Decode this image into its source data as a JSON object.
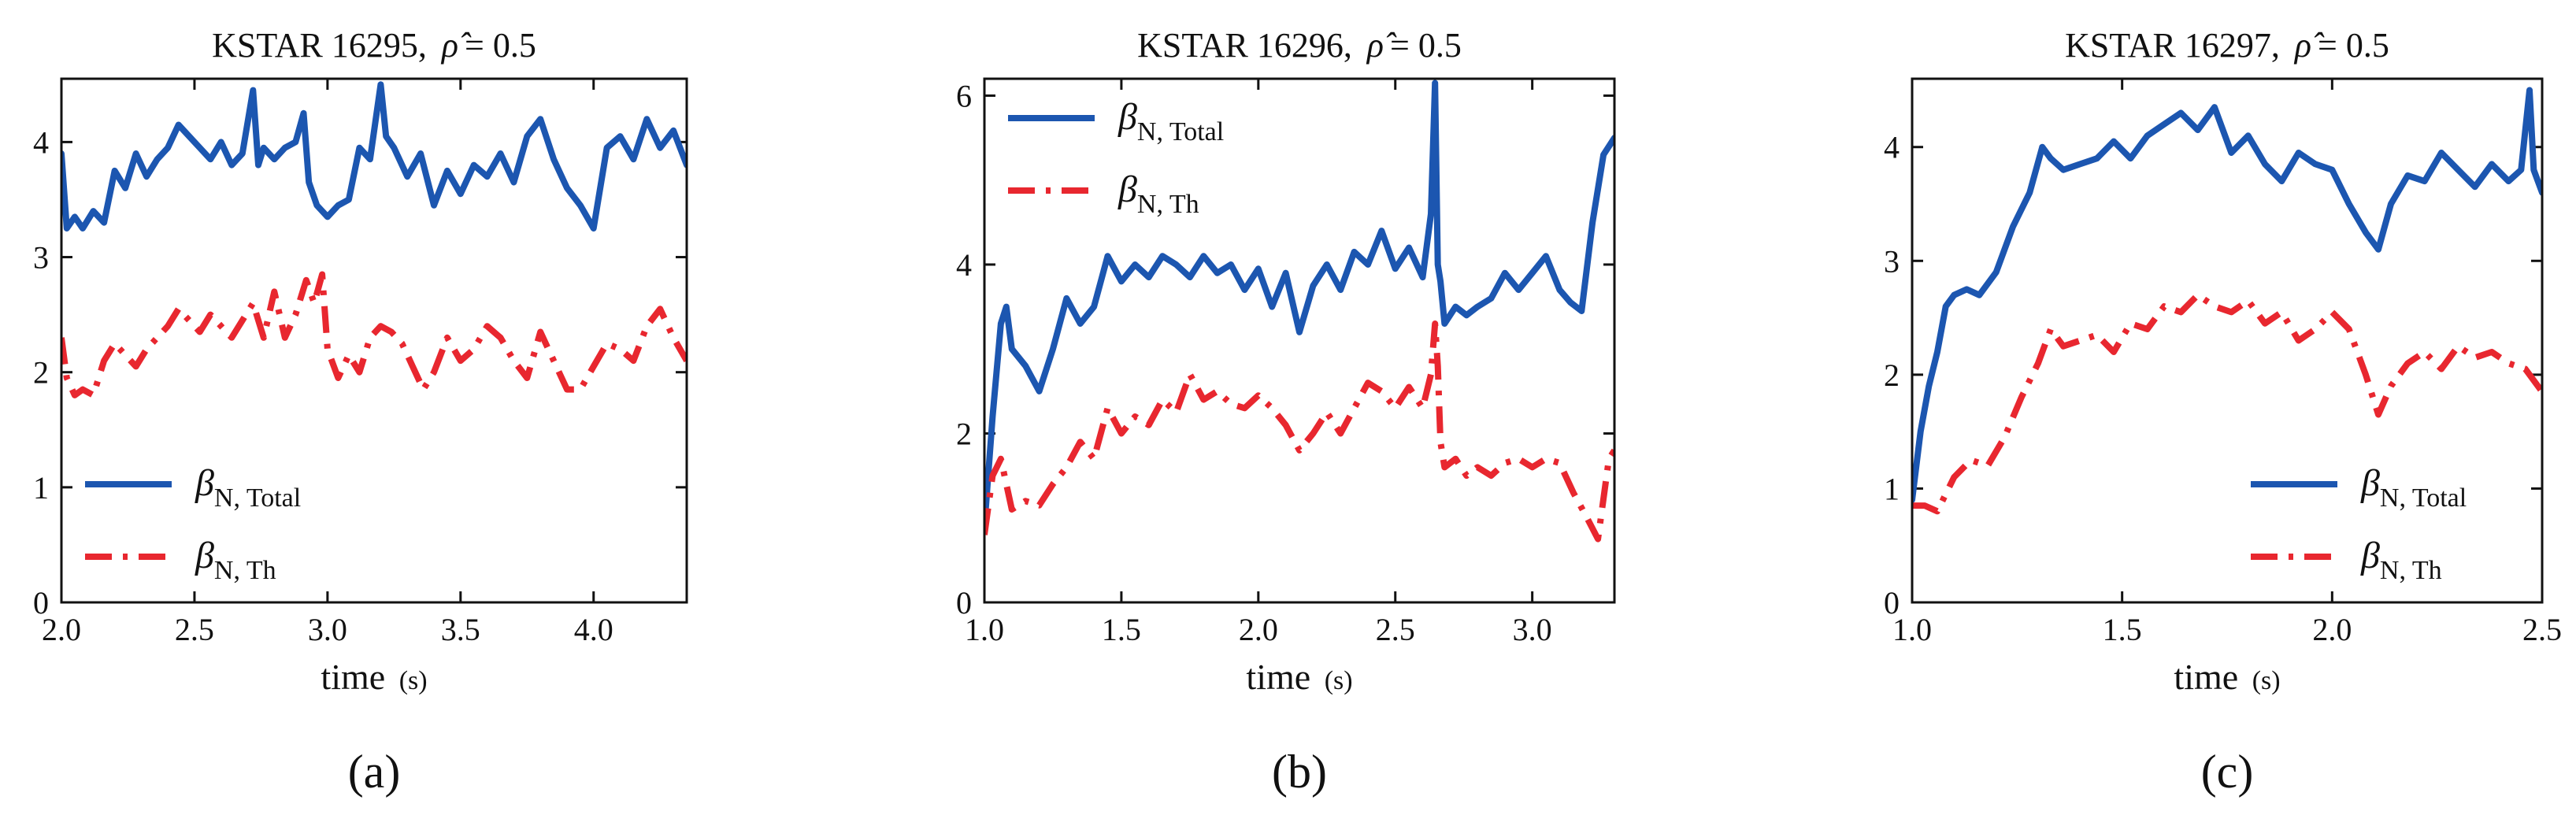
{
  "colors": {
    "total": "#1c56b0",
    "thermal": "#e8272f",
    "axis": "#111111"
  },
  "chart_data": [
    {
      "type": "line",
      "panel_label": "(a)",
      "title_prefix": "KSTAR 16295,",
      "title_rho": "ρ̂",
      "title_suffix": "= 0.5",
      "xlabel": "time",
      "xunit": "(s)",
      "ylabel": "",
      "xlim": [
        2.0,
        4.35
      ],
      "ylim": [
        0,
        4.55
      ],
      "xticks": [
        2.0,
        2.5,
        3.0,
        3.5,
        4.0
      ],
      "xtick_labels": [
        "2.0",
        "2.5",
        "3.0",
        "3.5",
        "4.0"
      ],
      "yticks": [
        0,
        1,
        2,
        3,
        4
      ],
      "ytick_labels": [
        "0",
        "1",
        "2",
        "3",
        "4"
      ],
      "legend_position": "lower-left",
      "series": [
        {
          "name": "βN,Total",
          "name_main": "β",
          "name_sub": "N, Total",
          "style": "solid",
          "color": "#1c56b0",
          "x": [
            2.0,
            2.02,
            2.05,
            2.08,
            2.12,
            2.16,
            2.2,
            2.24,
            2.28,
            2.32,
            2.36,
            2.4,
            2.44,
            2.48,
            2.52,
            2.56,
            2.6,
            2.64,
            2.68,
            2.72,
            2.74,
            2.76,
            2.8,
            2.84,
            2.88,
            2.91,
            2.93,
            2.96,
            3.0,
            3.04,
            3.08,
            3.12,
            3.16,
            3.2,
            3.22,
            3.25,
            3.3,
            3.35,
            3.4,
            3.45,
            3.5,
            3.55,
            3.6,
            3.65,
            3.7,
            3.75,
            3.8,
            3.85,
            3.9,
            3.95,
            4.0,
            4.05,
            4.1,
            4.15,
            4.2,
            4.25,
            4.3,
            4.35
          ],
          "y": [
            3.9,
            3.25,
            3.35,
            3.25,
            3.4,
            3.3,
            3.75,
            3.6,
            3.9,
            3.7,
            3.85,
            3.95,
            4.15,
            4.05,
            3.95,
            3.85,
            4.0,
            3.8,
            3.9,
            4.45,
            3.8,
            3.95,
            3.85,
            3.95,
            4.0,
            4.25,
            3.65,
            3.45,
            3.35,
            3.45,
            3.5,
            3.95,
            3.85,
            4.5,
            4.05,
            3.95,
            3.7,
            3.9,
            3.45,
            3.75,
            3.55,
            3.8,
            3.7,
            3.9,
            3.65,
            4.05,
            4.2,
            3.85,
            3.6,
            3.45,
            3.25,
            3.95,
            4.05,
            3.85,
            4.2,
            3.95,
            4.1,
            3.8
          ]
        },
        {
          "name": "βN,Th",
          "name_main": "β",
          "name_sub": "N, Th",
          "style": "dashdot",
          "color": "#e8272f",
          "x": [
            2.0,
            2.02,
            2.05,
            2.08,
            2.12,
            2.16,
            2.2,
            2.24,
            2.28,
            2.32,
            2.36,
            2.4,
            2.44,
            2.48,
            2.52,
            2.56,
            2.6,
            2.64,
            2.68,
            2.72,
            2.76,
            2.8,
            2.84,
            2.88,
            2.92,
            2.95,
            2.98,
            3.0,
            3.04,
            3.08,
            3.12,
            3.16,
            3.2,
            3.24,
            3.28,
            3.32,
            3.36,
            3.4,
            3.45,
            3.5,
            3.55,
            3.6,
            3.65,
            3.7,
            3.75,
            3.8,
            3.85,
            3.9,
            3.95,
            4.0,
            4.05,
            4.1,
            4.15,
            4.2,
            4.25,
            4.3,
            4.35
          ],
          "y": [
            2.3,
            1.95,
            1.8,
            1.85,
            1.8,
            2.1,
            2.25,
            2.15,
            2.05,
            2.2,
            2.3,
            2.4,
            2.55,
            2.45,
            2.35,
            2.5,
            2.4,
            2.3,
            2.45,
            2.6,
            2.3,
            2.7,
            2.3,
            2.5,
            2.8,
            2.6,
            2.85,
            2.2,
            1.95,
            2.15,
            2.0,
            2.3,
            2.4,
            2.35,
            2.25,
            2.05,
            1.85,
            2.0,
            2.3,
            2.1,
            2.2,
            2.4,
            2.3,
            2.1,
            1.95,
            2.35,
            2.1,
            1.85,
            1.85,
            2.05,
            2.25,
            2.2,
            2.1,
            2.4,
            2.55,
            2.3,
            2.1
          ]
        }
      ]
    },
    {
      "type": "line",
      "panel_label": "(b)",
      "title_prefix": "KSTAR 16296,",
      "title_rho": "ρ̂",
      "title_suffix": "= 0.5",
      "xlabel": "time",
      "xunit": "(s)",
      "ylabel": "",
      "xlim": [
        1.0,
        3.3
      ],
      "ylim": [
        0,
        6.2
      ],
      "xticks": [
        1.0,
        1.5,
        2.0,
        2.5,
        3.0
      ],
      "xtick_labels": [
        "1.0",
        "1.5",
        "2.0",
        "2.5",
        "3.0"
      ],
      "yticks": [
        0,
        2,
        4,
        6
      ],
      "ytick_labels": [
        "0",
        "2",
        "4",
        "6"
      ],
      "legend_position": "top-left",
      "series": [
        {
          "name": "βN,Total",
          "name_main": "β",
          "name_sub": "N, Total",
          "style": "solid",
          "color": "#1c56b0",
          "x": [
            1.0,
            1.03,
            1.06,
            1.08,
            1.1,
            1.15,
            1.2,
            1.25,
            1.3,
            1.35,
            1.4,
            1.45,
            1.5,
            1.55,
            1.6,
            1.65,
            1.7,
            1.75,
            1.8,
            1.85,
            1.9,
            1.95,
            2.0,
            2.05,
            2.1,
            2.15,
            2.2,
            2.25,
            2.3,
            2.35,
            2.4,
            2.45,
            2.5,
            2.55,
            2.6,
            2.63,
            2.645,
            2.655,
            2.665,
            2.68,
            2.72,
            2.76,
            2.8,
            2.85,
            2.9,
            2.95,
            3.0,
            3.05,
            3.1,
            3.14,
            3.18,
            3.22,
            3.26,
            3.3
          ],
          "y": [
            0.9,
            2.2,
            3.3,
            3.5,
            3.0,
            2.8,
            2.5,
            3.0,
            3.6,
            3.3,
            3.5,
            4.1,
            3.8,
            4.0,
            3.85,
            4.1,
            4.0,
            3.85,
            4.1,
            3.9,
            4.0,
            3.7,
            3.95,
            3.5,
            3.9,
            3.2,
            3.75,
            4.0,
            3.7,
            4.15,
            4.0,
            4.4,
            3.95,
            4.2,
            3.85,
            4.6,
            6.15,
            4.0,
            3.8,
            3.3,
            3.5,
            3.4,
            3.5,
            3.6,
            3.9,
            3.7,
            3.9,
            4.1,
            3.7,
            3.55,
            3.45,
            4.5,
            5.3,
            5.5
          ]
        },
        {
          "name": "βN,Th",
          "name_main": "β",
          "name_sub": "N, Th",
          "style": "dashdot",
          "color": "#e8272f",
          "x": [
            1.0,
            1.03,
            1.06,
            1.1,
            1.15,
            1.2,
            1.25,
            1.3,
            1.35,
            1.4,
            1.45,
            1.5,
            1.55,
            1.6,
            1.65,
            1.7,
            1.75,
            1.8,
            1.85,
            1.9,
            1.95,
            2.0,
            2.05,
            2.1,
            2.15,
            2.2,
            2.25,
            2.3,
            2.35,
            2.4,
            2.45,
            2.5,
            2.55,
            2.6,
            2.63,
            2.645,
            2.655,
            2.665,
            2.68,
            2.72,
            2.76,
            2.8,
            2.85,
            2.9,
            2.95,
            3.0,
            3.05,
            3.1,
            3.15,
            3.2,
            3.24,
            3.28,
            3.3
          ],
          "y": [
            0.8,
            1.5,
            1.7,
            1.1,
            1.2,
            1.15,
            1.4,
            1.6,
            1.9,
            1.7,
            2.3,
            2.0,
            2.2,
            2.1,
            2.4,
            2.25,
            2.7,
            2.4,
            2.5,
            2.35,
            2.3,
            2.45,
            2.3,
            2.1,
            1.8,
            2.0,
            2.25,
            2.0,
            2.3,
            2.6,
            2.5,
            2.3,
            2.55,
            2.3,
            2.7,
            3.3,
            2.8,
            1.9,
            1.6,
            1.7,
            1.5,
            1.6,
            1.5,
            1.65,
            1.7,
            1.6,
            1.7,
            1.65,
            1.3,
            1.0,
            0.75,
            1.7,
            1.8
          ]
        }
      ]
    },
    {
      "type": "line",
      "panel_label": "(c)",
      "title_prefix": "KSTAR 16297,",
      "title_rho": "ρ̂",
      "title_suffix": "= 0.5",
      "xlabel": "time",
      "xunit": "(s)",
      "ylabel": "",
      "xlim": [
        1.0,
        2.5
      ],
      "ylim": [
        0,
        4.6
      ],
      "xticks": [
        1.0,
        1.5,
        2.0,
        2.5
      ],
      "xtick_labels": [
        "1.0",
        "1.5",
        "2.0",
        "2.5"
      ],
      "yticks": [
        0,
        1,
        2,
        3,
        4
      ],
      "ytick_labels": [
        "0",
        "1",
        "2",
        "3",
        "4"
      ],
      "legend_position": "lower-right",
      "series": [
        {
          "name": "βN,Total",
          "name_main": "β",
          "name_sub": "N, Total",
          "style": "solid",
          "color": "#1c56b0",
          "x": [
            1.0,
            1.02,
            1.04,
            1.06,
            1.08,
            1.1,
            1.13,
            1.16,
            1.2,
            1.24,
            1.28,
            1.31,
            1.33,
            1.36,
            1.4,
            1.44,
            1.48,
            1.52,
            1.56,
            1.6,
            1.64,
            1.68,
            1.72,
            1.76,
            1.8,
            1.84,
            1.88,
            1.92,
            1.96,
            2.0,
            2.04,
            2.08,
            2.11,
            2.14,
            2.18,
            2.22,
            2.26,
            2.3,
            2.34,
            2.38,
            2.42,
            2.45,
            2.47,
            2.48,
            2.5
          ],
          "y": [
            0.9,
            1.5,
            1.9,
            2.2,
            2.6,
            2.7,
            2.75,
            2.7,
            2.9,
            3.3,
            3.6,
            4.0,
            3.9,
            3.8,
            3.85,
            3.9,
            4.05,
            3.9,
            4.1,
            4.2,
            4.3,
            4.15,
            4.35,
            3.95,
            4.1,
            3.85,
            3.7,
            3.95,
            3.85,
            3.8,
            3.5,
            3.25,
            3.1,
            3.5,
            3.75,
            3.7,
            3.95,
            3.8,
            3.65,
            3.85,
            3.7,
            3.8,
            4.5,
            3.8,
            3.6
          ]
        },
        {
          "name": "βN,Th",
          "name_main": "β",
          "name_sub": "N, Th",
          "style": "dashdot",
          "color": "#e8272f",
          "x": [
            1.0,
            1.03,
            1.06,
            1.1,
            1.14,
            1.18,
            1.22,
            1.26,
            1.3,
            1.33,
            1.36,
            1.4,
            1.44,
            1.48,
            1.52,
            1.56,
            1.6,
            1.64,
            1.68,
            1.72,
            1.76,
            1.8,
            1.84,
            1.88,
            1.92,
            1.96,
            2.0,
            2.04,
            2.08,
            2.11,
            2.14,
            2.18,
            2.22,
            2.26,
            2.3,
            2.34,
            2.38,
            2.42,
            2.46,
            2.5
          ],
          "y": [
            0.85,
            0.85,
            0.8,
            1.1,
            1.25,
            1.2,
            1.45,
            1.8,
            2.1,
            2.4,
            2.25,
            2.3,
            2.35,
            2.2,
            2.45,
            2.4,
            2.6,
            2.55,
            2.7,
            2.6,
            2.55,
            2.65,
            2.45,
            2.55,
            2.3,
            2.4,
            2.55,
            2.4,
            2.0,
            1.65,
            1.9,
            2.1,
            2.2,
            2.05,
            2.25,
            2.15,
            2.2,
            2.1,
            2.05,
            1.85
          ]
        }
      ]
    }
  ]
}
